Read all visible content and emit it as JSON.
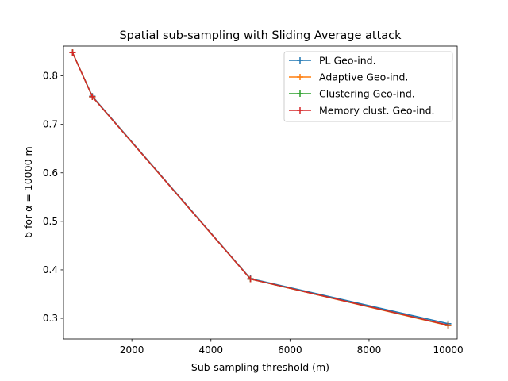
{
  "chart_data": {
    "type": "line",
    "title": "Spatial sub-sampling with Sliding Average attack",
    "xlabel": "Sub-sampling threshold (m)",
    "ylabel": "δ for α = 10000 m",
    "xlim": [
      270,
      10230
    ],
    "ylim": [
      0.2575,
      0.8615
    ],
    "xticks": [
      2000,
      4000,
      6000,
      8000,
      10000
    ],
    "xtick_labels": [
      "2000",
      "4000",
      "6000",
      "8000",
      "10000"
    ],
    "yticks": [
      0.3,
      0.4,
      0.5,
      0.6,
      0.7,
      0.8
    ],
    "ytick_labels": [
      "0.3",
      "0.4",
      "0.5",
      "0.6",
      "0.7",
      "0.8"
    ],
    "x": [
      500,
      1000,
      5000,
      10000
    ],
    "legend_position": "upper right",
    "marker": "+",
    "grid": false,
    "series": [
      {
        "name": "PL Geo-ind.",
        "color": "#1f77b4",
        "values": [
          0.848,
          0.758,
          0.382,
          0.289
        ]
      },
      {
        "name": "Adaptive Geo-ind.",
        "color": "#ff7f0e",
        "values": [
          0.848,
          0.757,
          0.381,
          0.285
        ]
      },
      {
        "name": "Clustering Geo-ind.",
        "color": "#2ca02c",
        "values": [
          0.848,
          0.757,
          0.381,
          0.286
        ]
      },
      {
        "name": "Memory clust. Geo-ind.",
        "color": "#d62728",
        "values": [
          0.848,
          0.757,
          0.381,
          0.286
        ]
      }
    ]
  }
}
